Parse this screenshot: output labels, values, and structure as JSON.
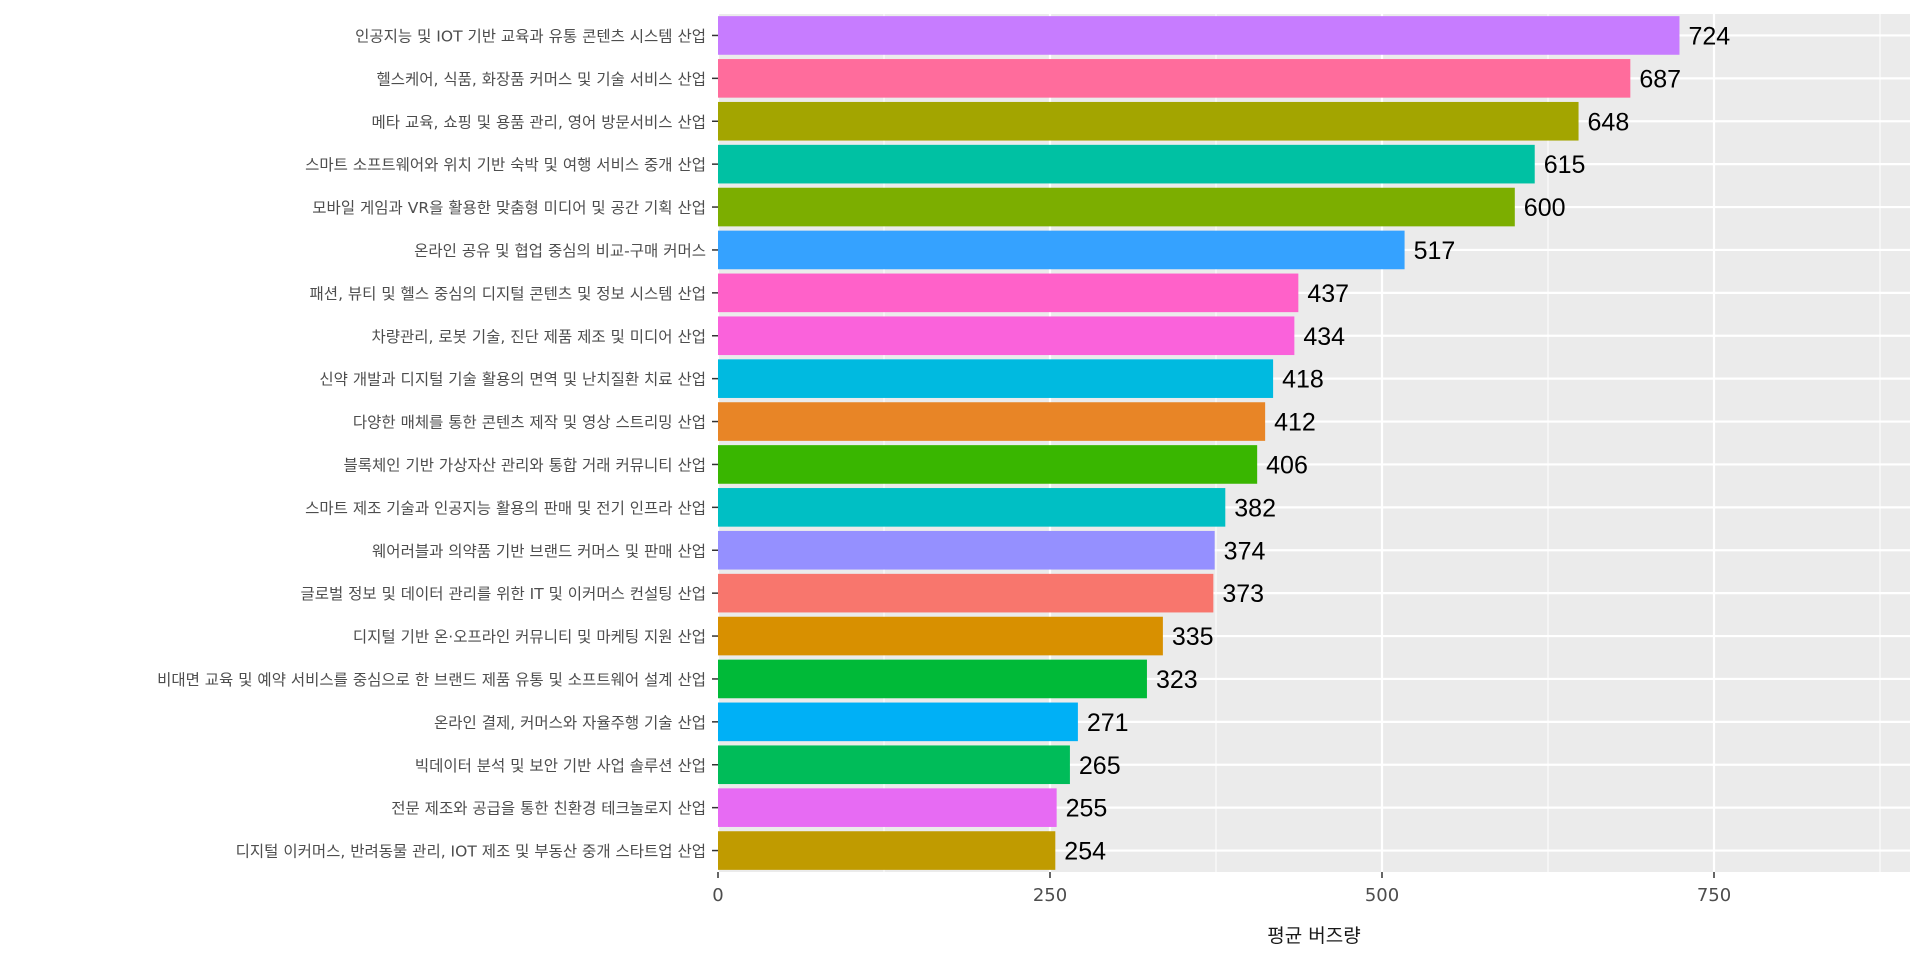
{
  "chart_data": {
    "type": "bar",
    "orientation": "horizontal",
    "title": "",
    "xlabel": "평균 버즈량",
    "ylabel": "",
    "xlim": [
      0,
      880
    ],
    "x_ticks": [
      0,
      250,
      500,
      750
    ],
    "grid": true,
    "legend": "none",
    "categories": [
      "인공지능 및 IOT 기반 교육과 유통 콘텐츠 시스템 산업",
      "헬스케어, 식품, 화장품 커머스 및 기술 서비스 산업",
      "메타 교육, 쇼핑 및 용품 관리, 영어 방문서비스 산업",
      "스마트 소프트웨어와 위치 기반 숙박 및 여행 서비스 중개 산업",
      "모바일 게임과 VR을 활용한 맞춤형 미디어 및 공간 기획 산업",
      "온라인 공유 및 협업 중심의 비교-구매 커머스",
      "패션, 뷰티 및 헬스 중심의 디지털 콘텐츠 및 정보 시스템 산업",
      "차량관리, 로봇 기술, 진단 제품 제조 및 미디어 산업",
      "신약 개발과 디지털 기술 활용의 면역 및 난치질환 치료 산업",
      "다양한 매체를 통한 콘텐츠 제작 및 영상 스트리밍 산업",
      "블록체인 기반 가상자산 관리와 통합 거래 커뮤니티 산업",
      "스마트 제조 기술과 인공지능 활용의 판매 및 전기 인프라 산업",
      "웨어러블과 의약품 기반 브랜드 커머스 및 판매 산업",
      "글로벌 정보 및 데이터 관리를 위한 IT 및 이커머스 컨설팅 산업",
      "디지털 기반 온·오프라인 커뮤니티 및 마케팅 지원 산업",
      "비대면 교육 및 예약 서비스를 중심으로 한 브랜드 제품 유통 및 소프트웨어 설계 산업",
      "온라인 결제, 커머스와 자율주행 기술 산업",
      "빅데이터 분석 및 보안 기반 사업 솔루션 산업",
      "전문 제조와 공급을 통한 친환경 테크놀로지 산업",
      "디지털 이커머스, 반려동물 관리, IOT 제조 및 부동산 중개 스타트업 산업"
    ],
    "values": [
      724,
      687,
      648,
      615,
      600,
      517,
      437,
      434,
      418,
      412,
      406,
      382,
      374,
      373,
      335,
      323,
      271,
      265,
      255,
      254
    ],
    "value_labels": [
      "724",
      "687",
      "648",
      "615",
      "600",
      "517",
      "437",
      "434",
      "418",
      "412",
      "406",
      "382",
      "374",
      "373",
      "335",
      "323",
      "271",
      "265",
      "255",
      "254"
    ],
    "tick_labels": [
      "0",
      "250",
      "500",
      "750"
    ],
    "colors": [
      "#C77CFF",
      "#FF6C9C",
      "#A3A500",
      "#00C1A3",
      "#7CAE00",
      "#35A2FF",
      "#FF61C9",
      "#FA62DB",
      "#00BAE0",
      "#E88526",
      "#39B600",
      "#00BFC4",
      "#9590FF",
      "#F8766D",
      "#D89000",
      "#00BA38",
      "#00B0F6",
      "#00BC59",
      "#E76BF3",
      "#C09B00"
    ],
    "panel_background": "#EBEBEB",
    "grid_color": "#FFFFFF"
  }
}
